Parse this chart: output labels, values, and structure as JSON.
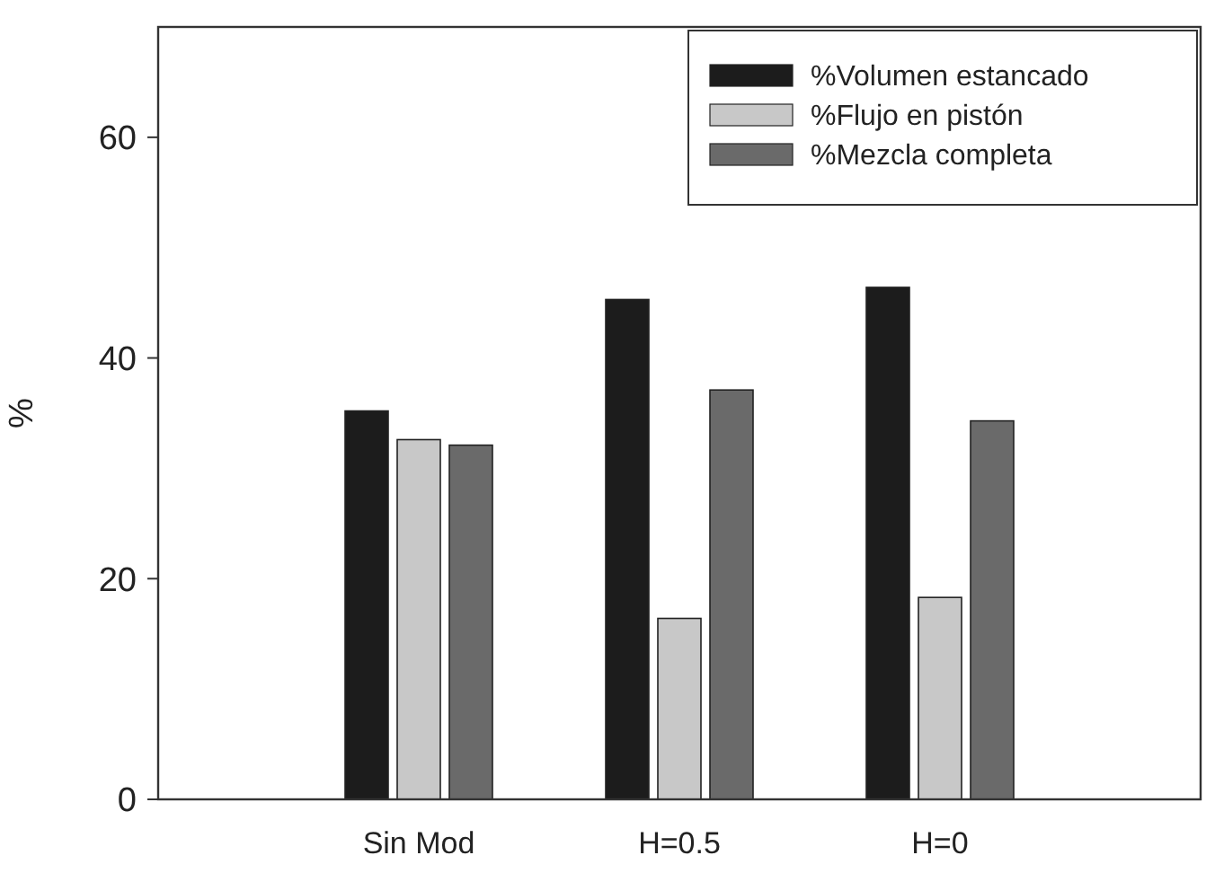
{
  "chart_data": {
    "type": "bar",
    "ylabel": "%",
    "categories": [
      "Sin Mod",
      "H=0.5",
      "H=0"
    ],
    "series": [
      {
        "name": "%Volumen estancado",
        "color": "#1c1c1c",
        "values": [
          35.2,
          45.3,
          46.4
        ]
      },
      {
        "name": "%Flujo en pistón",
        "color": "#c8c8c8",
        "values": [
          32.6,
          16.4,
          18.3
        ]
      },
      {
        "name": "%Mezcla completa",
        "color": "#6a6a6a",
        "values": [
          32.1,
          37.1,
          34.3
        ]
      }
    ],
    "ylim": [
      0,
      70
    ],
    "yticks": [
      0,
      20,
      40,
      60
    ],
    "legend": "top right"
  }
}
